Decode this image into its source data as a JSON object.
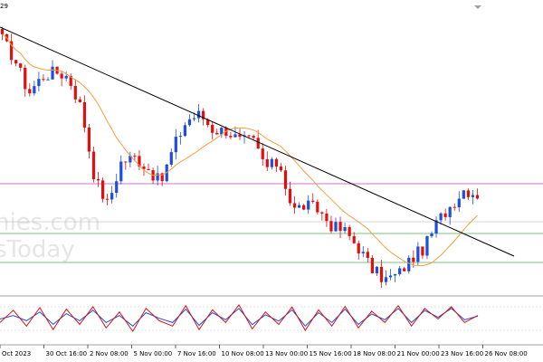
{
  "window": {
    "title_fragment": "29"
  },
  "watermark": {
    "line1": "nies.com",
    "line2": "sToday"
  },
  "colors": {
    "background": "#ffffff",
    "candle_up": "#1e4fd8",
    "candle_down": "#e01010",
    "moving_average": "#f0a040",
    "trendline": "#000000",
    "hline_magenta": "#c040c0",
    "hline_green": "#4caf50",
    "hline_gray": "#b0b0b0",
    "stoch_main": "#e01010",
    "stoch_signal": "#1e4fd8",
    "watermark": "#e6e6e6"
  },
  "chart_data": [
    {
      "type": "candlestick",
      "panel": "price",
      "x_ticks": [
        "Oct 2023",
        "30 Oct 16:00",
        "2 Nov 08:00",
        "5 Nov 00:00",
        "7 Nov 16:00",
        "10 Nov 08:00",
        "13 Nov 00:00",
        "15 Nov 16:00",
        "18 Nov 08:00",
        "21 Nov 00:00",
        "23 Nov 16:00",
        "26 Nov 08:00"
      ],
      "close_path": [
        0.92,
        0.84,
        0.72,
        0.78,
        0.8,
        0.78,
        0.66,
        0.4,
        0.3,
        0.46,
        0.48,
        0.44,
        0.38,
        0.52,
        0.62,
        0.64,
        0.58,
        0.58,
        0.54,
        0.54,
        0.44,
        0.46,
        0.28,
        0.3,
        0.28,
        0.22,
        0.2,
        0.14,
        0.06,
        0.02,
        0.04,
        0.1,
        0.14,
        0.24,
        0.3,
        0.36,
        0.34
      ],
      "indicators": [
        "moving average",
        "descending trendline",
        "horizontal levels"
      ],
      "grid": false
    },
    {
      "type": "line",
      "panel": "stochastic oscillator",
      "series": [
        {
          "values": [
            40,
            75,
            30,
            82,
            20,
            78,
            35,
            85,
            25,
            70,
            15,
            80,
            45,
            30,
            88,
            20,
            76,
            40,
            90,
            22,
            70,
            35,
            84,
            18,
            76,
            30,
            86,
            25,
            72,
            40,
            88,
            30,
            80,
            50,
            85,
            40,
            60
          ]
        },
        {
          "values": [
            50,
            60,
            45,
            70,
            35,
            65,
            45,
            75,
            40,
            60,
            30,
            68,
            52,
            40,
            78,
            32,
            68,
            48,
            80,
            34,
            62,
            44,
            76,
            30,
            68,
            40,
            78,
            35,
            64,
            48,
            80,
            40,
            74,
            55,
            80,
            48,
            58
          ]
        }
      ]
    }
  ]
}
